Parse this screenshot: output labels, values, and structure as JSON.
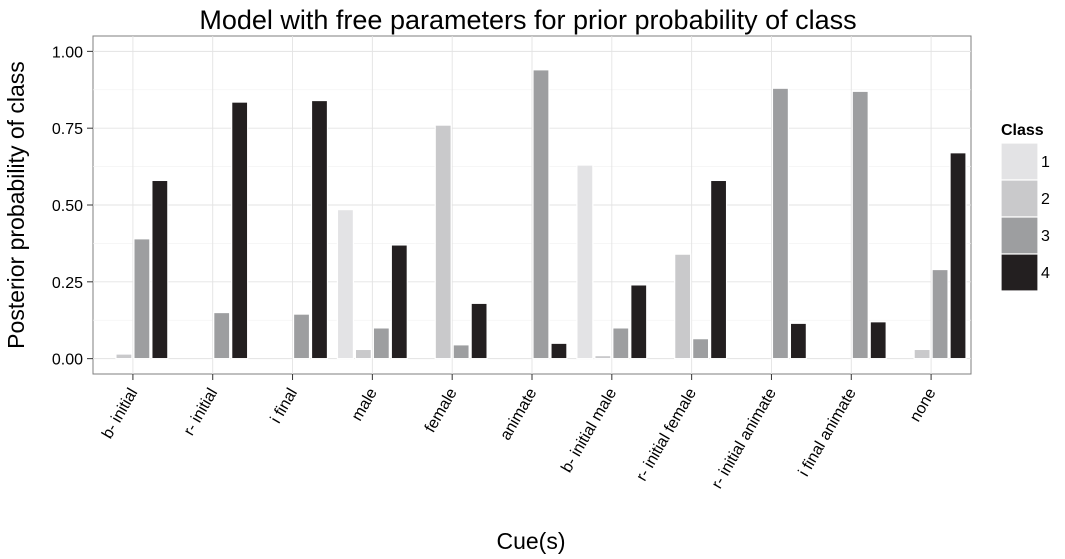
{
  "chart_data": {
    "type": "bar",
    "title": "Model with free parameters for prior probability of class",
    "xlabel": "Cue(s)",
    "ylabel": "Posterior probability of class",
    "ylim": [
      -0.05,
      1.05
    ],
    "yticks": [
      0,
      0.25,
      0.5,
      0.75,
      1.0
    ],
    "ytick_labels": [
      "0.00",
      "0.25",
      "0.50",
      "0.75",
      "1.00"
    ],
    "grid": true,
    "legend": {
      "title": "Class",
      "position": "right"
    },
    "categories": [
      "b- initial",
      "r- initial",
      "i final",
      "male",
      "female",
      "animate",
      "b- initial male",
      "r- initial female",
      "r- initial animate",
      "i final animate",
      "none"
    ],
    "series": [
      {
        "name": "1",
        "color": "#e3e3e5",
        "values": [
          0.0,
          0.0,
          0.0,
          0.485,
          0.0,
          0.0,
          0.63,
          0.0,
          0.0,
          0.0,
          0.0
        ]
      },
      {
        "name": "2",
        "color": "#c9c9cb",
        "values": [
          0.015,
          0.0,
          0.0,
          0.03,
          0.76,
          0.0,
          0.01,
          0.34,
          0.0,
          0.0,
          0.03
        ]
      },
      {
        "name": "3",
        "color": "#9d9ea0",
        "values": [
          0.39,
          0.15,
          0.145,
          0.1,
          0.045,
          0.94,
          0.1,
          0.065,
          0.88,
          0.87,
          0.29
        ]
      },
      {
        "name": "4",
        "color": "#231f20",
        "values": [
          0.58,
          0.835,
          0.84,
          0.37,
          0.18,
          0.05,
          0.24,
          0.58,
          0.115,
          0.12,
          0.67
        ]
      }
    ]
  }
}
